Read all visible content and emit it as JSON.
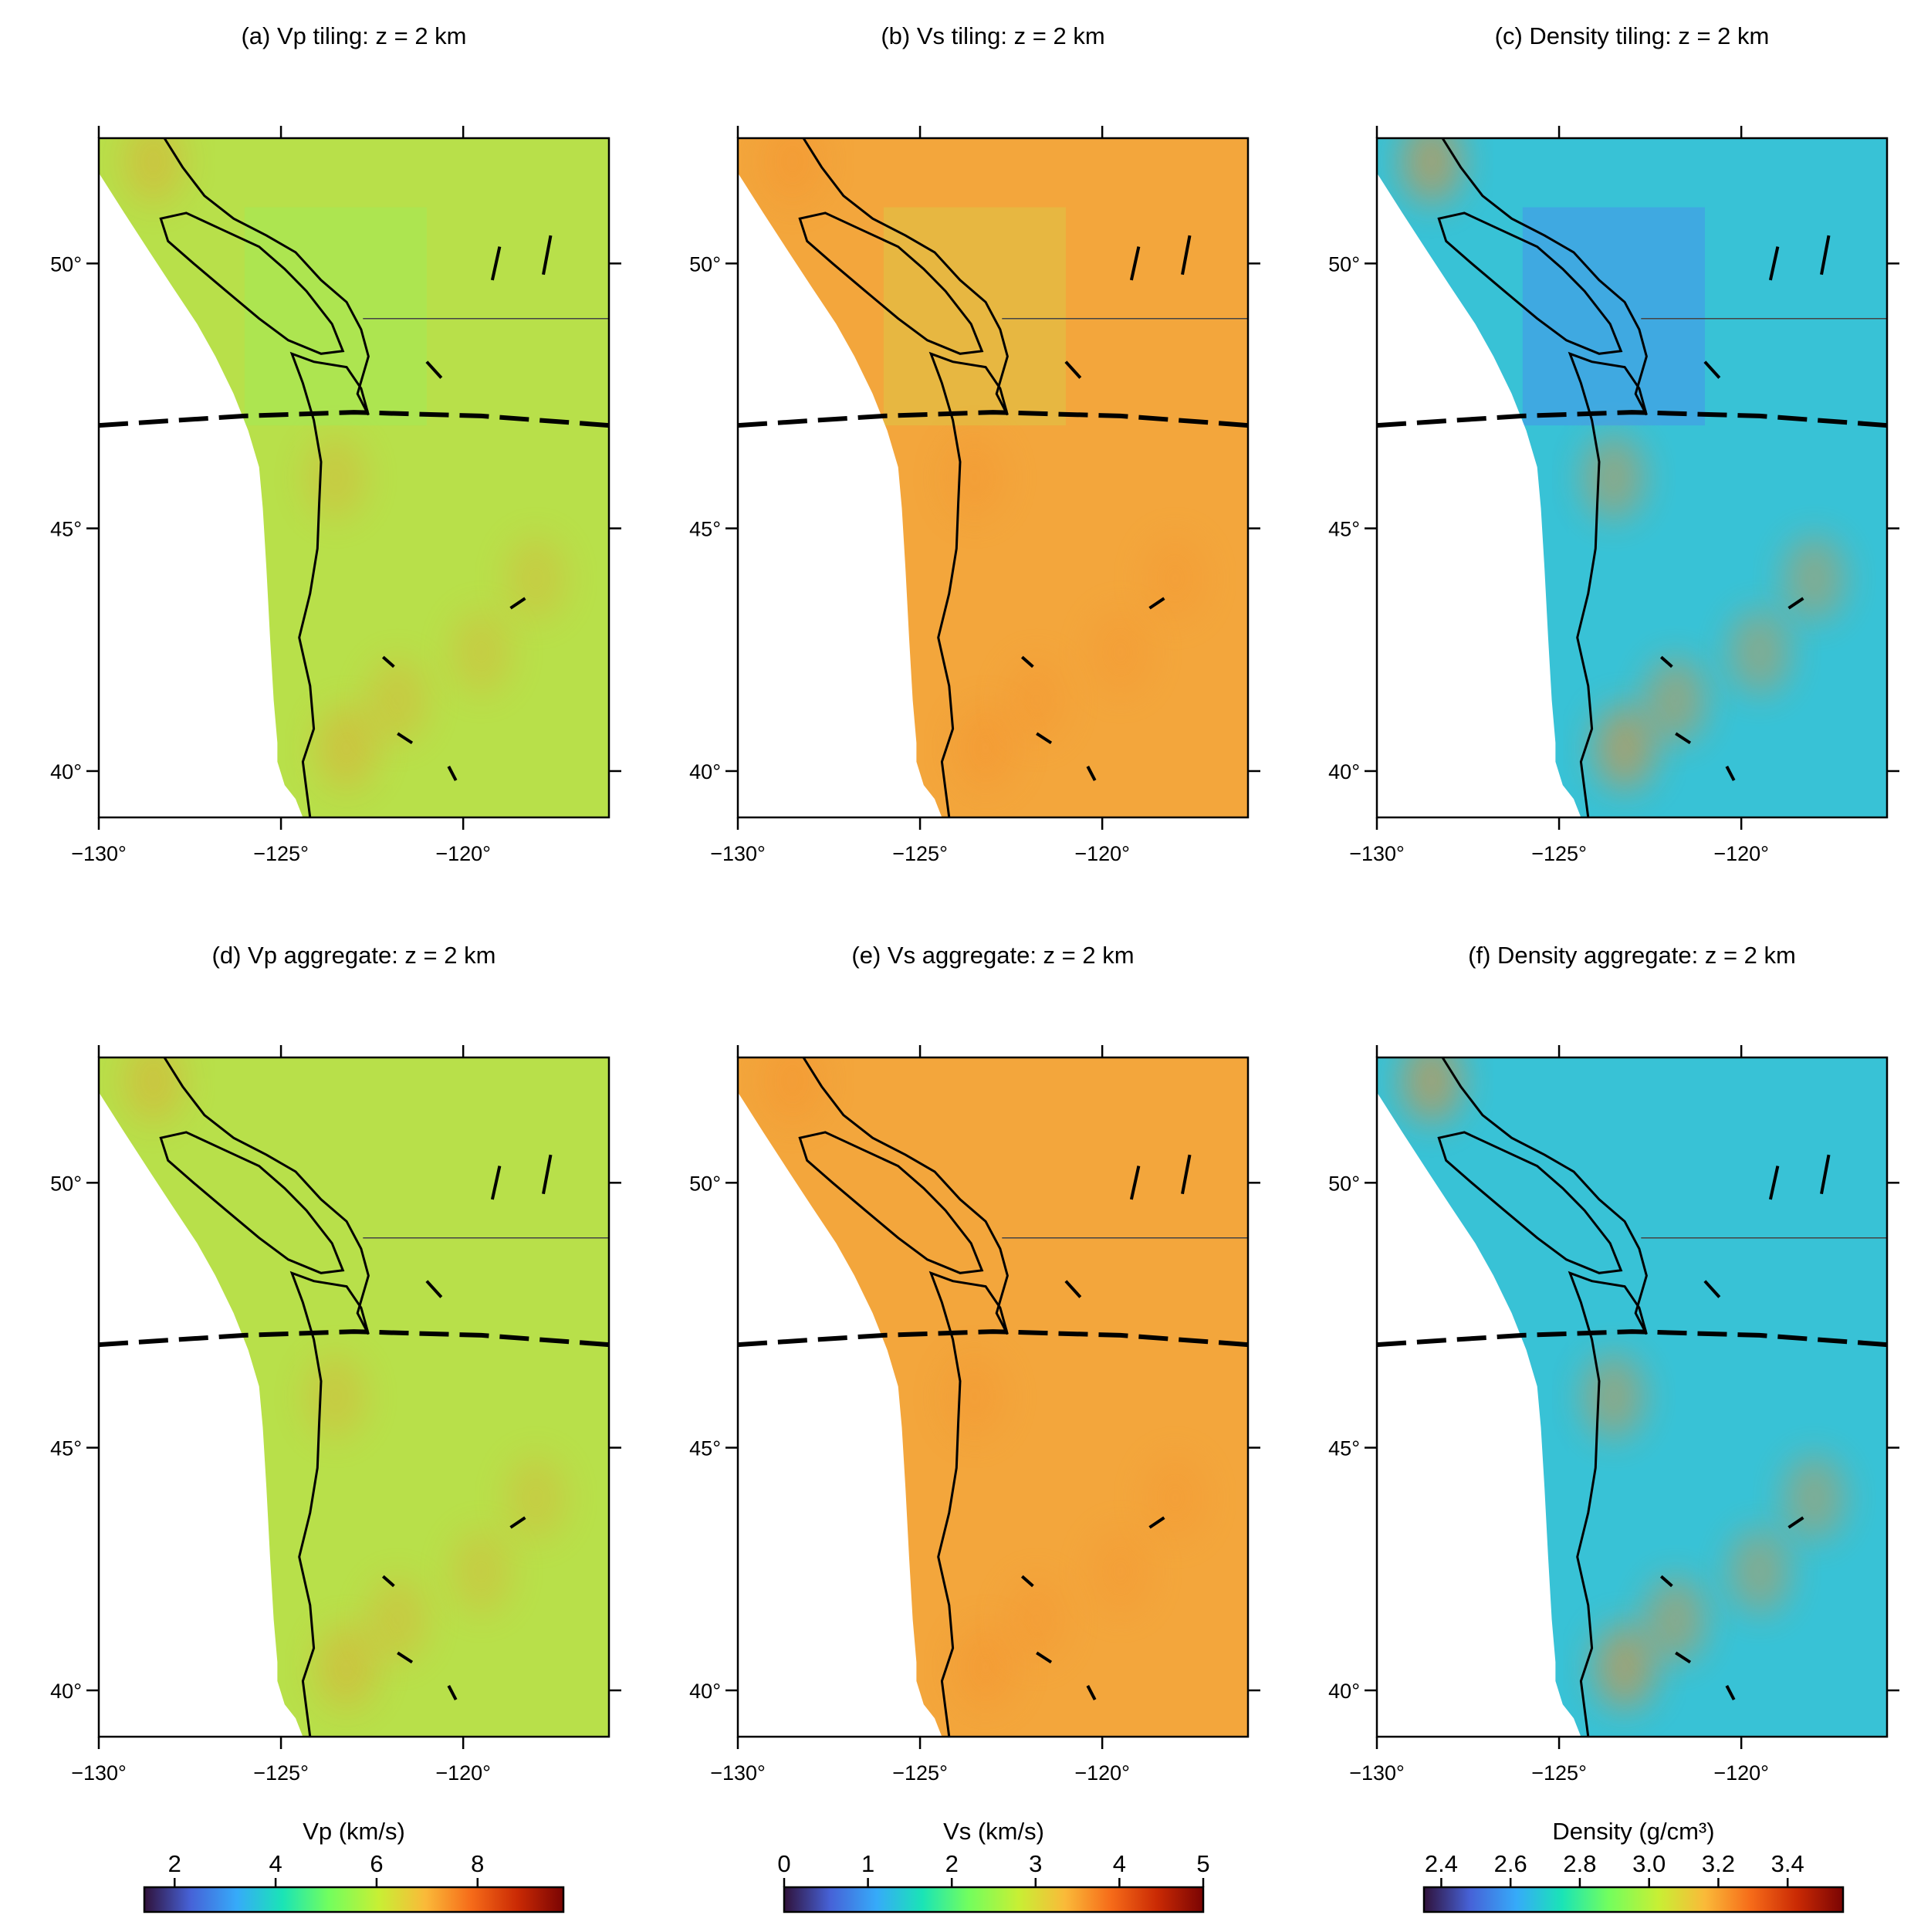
{
  "chart_data": [
    {
      "type": "map",
      "title": "(a) Vp tiling: z = 2 km",
      "xlim": [
        -130,
        -116
      ],
      "ylim": [
        39,
        52.2
      ],
      "xticks": [
        {
          "value": -130,
          "label": "−130°"
        },
        {
          "value": -125,
          "label": "−125°"
        },
        {
          "value": -120,
          "label": "−120°"
        }
      ],
      "yticks": [
        {
          "value": 40,
          "label": "40°"
        },
        {
          "value": 45,
          "label": "45°"
        },
        {
          "value": 50,
          "label": "50°"
        }
      ],
      "color": "#b8e04a",
      "tile_color": "#9fea58"
    },
    {
      "type": "map",
      "title": "(b) Vs tiling: z = 2 km",
      "xlim": [
        -130,
        -116
      ],
      "ylim": [
        39,
        52.2
      ],
      "xticks": [
        {
          "value": -130,
          "label": "−130°"
        },
        {
          "value": -125,
          "label": "−125°"
        },
        {
          "value": -120,
          "label": "−120°"
        }
      ],
      "yticks": [
        {
          "value": 40,
          "label": "40°"
        },
        {
          "value": 45,
          "label": "45°"
        },
        {
          "value": 50,
          "label": "50°"
        }
      ],
      "color": "#f3a63c",
      "tile_color": "#d9cc48"
    },
    {
      "type": "map",
      "title": "(c) Density tiling: z = 2 km",
      "xlim": [
        -130,
        -116
      ],
      "ylim": [
        39,
        52.2
      ],
      "xticks": [
        {
          "value": -130,
          "label": "−130°"
        },
        {
          "value": -125,
          "label": "−125°"
        },
        {
          "value": -120,
          "label": "−120°"
        }
      ],
      "yticks": [
        {
          "value": 40,
          "label": "40°"
        },
        {
          "value": 45,
          "label": "45°"
        },
        {
          "value": 50,
          "label": "50°"
        }
      ],
      "color": "#38c2d6",
      "tile_color": "#4a8cef"
    },
    {
      "type": "map",
      "title": "(d) Vp aggregate: z = 2 km",
      "xlim": [
        -130,
        -116
      ],
      "ylim": [
        39,
        52.2
      ],
      "xticks": [
        {
          "value": -130,
          "label": "−130°"
        },
        {
          "value": -125,
          "label": "−125°"
        },
        {
          "value": -120,
          "label": "−120°"
        }
      ],
      "yticks": [
        {
          "value": 40,
          "label": "40°"
        },
        {
          "value": 45,
          "label": "45°"
        },
        {
          "value": 50,
          "label": "50°"
        }
      ],
      "color": "#b8e04a"
    },
    {
      "type": "map",
      "title": "(e) Vs aggregate: z = 2 km",
      "xlim": [
        -130,
        -116
      ],
      "ylim": [
        39,
        52.2
      ],
      "xticks": [
        {
          "value": -130,
          "label": "−130°"
        },
        {
          "value": -125,
          "label": "−125°"
        },
        {
          "value": -120,
          "label": "−120°"
        }
      ],
      "yticks": [
        {
          "value": 40,
          "label": "40°"
        },
        {
          "value": 45,
          "label": "45°"
        },
        {
          "value": 50,
          "label": "50°"
        }
      ],
      "color": "#f3a63c"
    },
    {
      "type": "map",
      "title": "(f) Density aggregate: z = 2 km",
      "xlim": [
        -130,
        -116
      ],
      "ylim": [
        39,
        52.2
      ],
      "xticks": [
        {
          "value": -130,
          "label": "−130°"
        },
        {
          "value": -125,
          "label": "−125°"
        },
        {
          "value": -120,
          "label": "−120°"
        }
      ],
      "yticks": [
        {
          "value": 40,
          "label": "40°"
        },
        {
          "value": 45,
          "label": "45°"
        },
        {
          "value": 50,
          "label": "50°"
        }
      ],
      "color": "#38c2d6"
    }
  ],
  "colorbars": [
    {
      "label": "Vp (km/s)",
      "lim": [
        1.4,
        9.7
      ],
      "ticks": [
        2,
        4,
        6,
        8
      ]
    },
    {
      "label": "Vs (km/s)",
      "lim": [
        0,
        5
      ],
      "ticks": [
        0,
        1,
        2,
        3,
        4,
        5
      ]
    },
    {
      "label": "Density (g/cm³)",
      "lim": [
        2.35,
        3.56
      ],
      "ticks": [
        2.4,
        2.6,
        2.8,
        {
          "value": 3,
          "label": "3.0"
        },
        3.2,
        3.4
      ]
    }
  ]
}
